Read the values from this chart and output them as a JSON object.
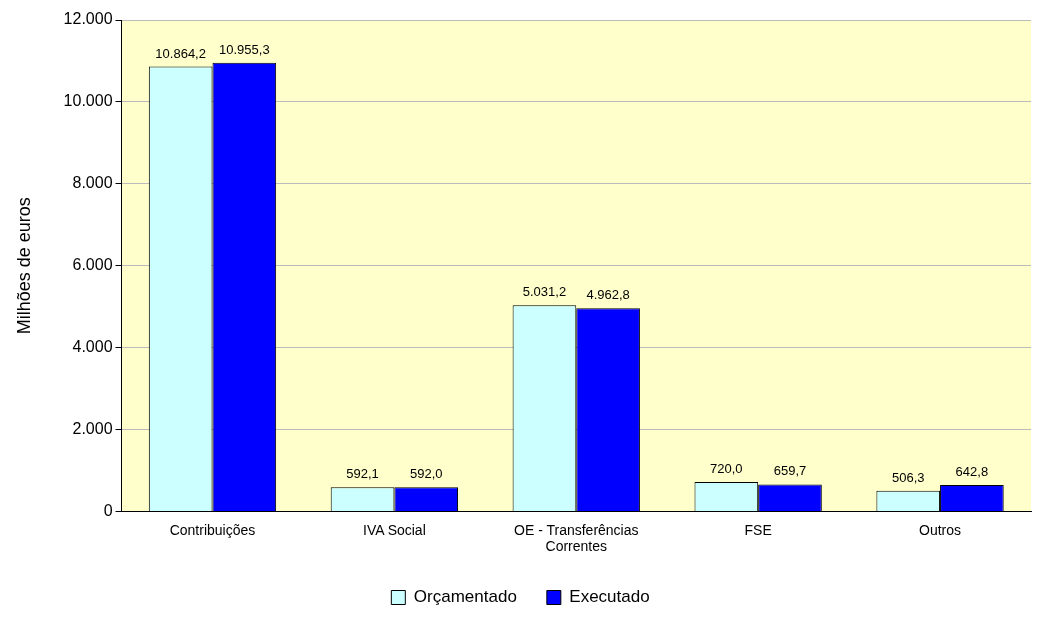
{
  "chart_data": {
    "type": "bar",
    "ylabel": "Milhões de euros",
    "categories": [
      "Contribuições",
      "IVA Social",
      "OE - Transferências Correntes",
      "FSE",
      "Outros"
    ],
    "series": [
      {
        "name": "Orçamentado",
        "color": "#ccffff",
        "values": [
          10864.2,
          592.1,
          5031.2,
          720.0,
          506.3
        ],
        "value_labels": [
          "10.864,2",
          "592,1",
          "5.031,2",
          "720,0",
          "506,3"
        ]
      },
      {
        "name": "Executado",
        "color": "#0000ff",
        "values": [
          10955.3,
          592.0,
          4962.8,
          659.7,
          642.8
        ],
        "value_labels": [
          "10.955,3",
          "592,0",
          "4.962,8",
          "659,7",
          "642,8"
        ]
      }
    ],
    "ylim": [
      0,
      12000
    ],
    "yticks": [
      {
        "value": 0,
        "label": "0"
      },
      {
        "value": 2000,
        "label": "2.000"
      },
      {
        "value": 4000,
        "label": "4.000"
      },
      {
        "value": 6000,
        "label": "6.000"
      },
      {
        "value": 8000,
        "label": "8.000"
      },
      {
        "value": 10000,
        "label": "10.000"
      },
      {
        "value": 12000,
        "label": "12.000"
      }
    ],
    "grid": "y",
    "legend": "bottom"
  }
}
